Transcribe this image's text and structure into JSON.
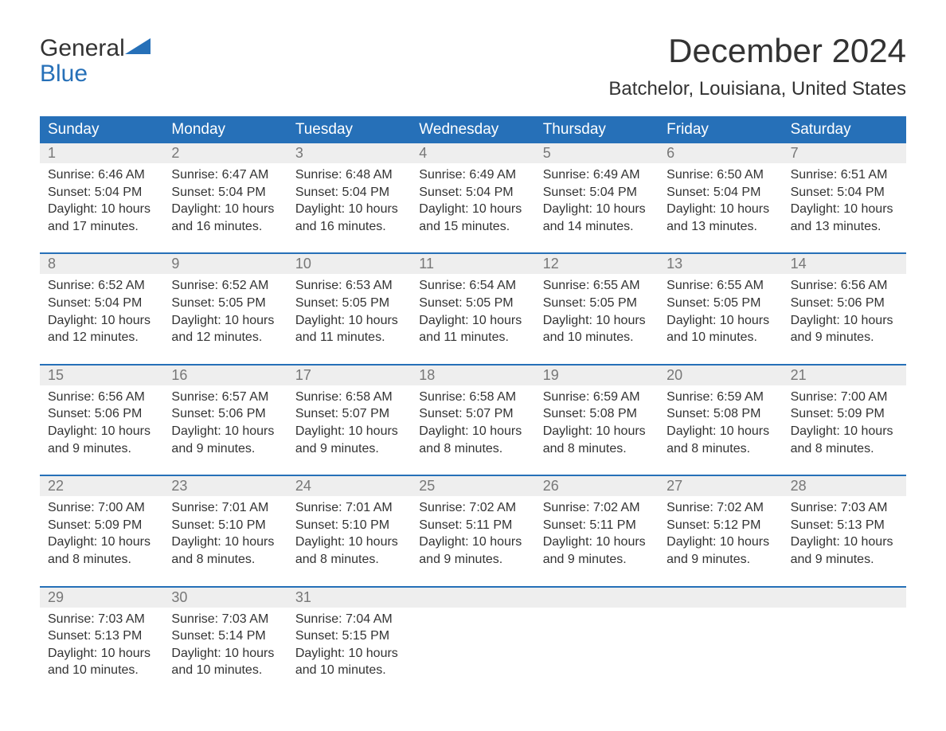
{
  "logo": {
    "word1": "General",
    "word2": "Blue"
  },
  "title": "December 2024",
  "location": "Batchelor, Louisiana, United States",
  "colors": {
    "header_bg": "#2670b8",
    "header_text": "#ffffff",
    "daynum_bg": "#eeeeee",
    "daynum_text": "#777777",
    "body_text": "#333333",
    "logo_blue": "#2670b8"
  },
  "day_headers": [
    "Sunday",
    "Monday",
    "Tuesday",
    "Wednesday",
    "Thursday",
    "Friday",
    "Saturday"
  ],
  "weeks": [
    [
      {
        "n": "1",
        "sr": "Sunrise: 6:46 AM",
        "ss": "Sunset: 5:04 PM",
        "d1": "Daylight: 10 hours",
        "d2": "and 17 minutes."
      },
      {
        "n": "2",
        "sr": "Sunrise: 6:47 AM",
        "ss": "Sunset: 5:04 PM",
        "d1": "Daylight: 10 hours",
        "d2": "and 16 minutes."
      },
      {
        "n": "3",
        "sr": "Sunrise: 6:48 AM",
        "ss": "Sunset: 5:04 PM",
        "d1": "Daylight: 10 hours",
        "d2": "and 16 minutes."
      },
      {
        "n": "4",
        "sr": "Sunrise: 6:49 AM",
        "ss": "Sunset: 5:04 PM",
        "d1": "Daylight: 10 hours",
        "d2": "and 15 minutes."
      },
      {
        "n": "5",
        "sr": "Sunrise: 6:49 AM",
        "ss": "Sunset: 5:04 PM",
        "d1": "Daylight: 10 hours",
        "d2": "and 14 minutes."
      },
      {
        "n": "6",
        "sr": "Sunrise: 6:50 AM",
        "ss": "Sunset: 5:04 PM",
        "d1": "Daylight: 10 hours",
        "d2": "and 13 minutes."
      },
      {
        "n": "7",
        "sr": "Sunrise: 6:51 AM",
        "ss": "Sunset: 5:04 PM",
        "d1": "Daylight: 10 hours",
        "d2": "and 13 minutes."
      }
    ],
    [
      {
        "n": "8",
        "sr": "Sunrise: 6:52 AM",
        "ss": "Sunset: 5:04 PM",
        "d1": "Daylight: 10 hours",
        "d2": "and 12 minutes."
      },
      {
        "n": "9",
        "sr": "Sunrise: 6:52 AM",
        "ss": "Sunset: 5:05 PM",
        "d1": "Daylight: 10 hours",
        "d2": "and 12 minutes."
      },
      {
        "n": "10",
        "sr": "Sunrise: 6:53 AM",
        "ss": "Sunset: 5:05 PM",
        "d1": "Daylight: 10 hours",
        "d2": "and 11 minutes."
      },
      {
        "n": "11",
        "sr": "Sunrise: 6:54 AM",
        "ss": "Sunset: 5:05 PM",
        "d1": "Daylight: 10 hours",
        "d2": "and 11 minutes."
      },
      {
        "n": "12",
        "sr": "Sunrise: 6:55 AM",
        "ss": "Sunset: 5:05 PM",
        "d1": "Daylight: 10 hours",
        "d2": "and 10 minutes."
      },
      {
        "n": "13",
        "sr": "Sunrise: 6:55 AM",
        "ss": "Sunset: 5:05 PM",
        "d1": "Daylight: 10 hours",
        "d2": "and 10 minutes."
      },
      {
        "n": "14",
        "sr": "Sunrise: 6:56 AM",
        "ss": "Sunset: 5:06 PM",
        "d1": "Daylight: 10 hours",
        "d2": "and 9 minutes."
      }
    ],
    [
      {
        "n": "15",
        "sr": "Sunrise: 6:56 AM",
        "ss": "Sunset: 5:06 PM",
        "d1": "Daylight: 10 hours",
        "d2": "and 9 minutes."
      },
      {
        "n": "16",
        "sr": "Sunrise: 6:57 AM",
        "ss": "Sunset: 5:06 PM",
        "d1": "Daylight: 10 hours",
        "d2": "and 9 minutes."
      },
      {
        "n": "17",
        "sr": "Sunrise: 6:58 AM",
        "ss": "Sunset: 5:07 PM",
        "d1": "Daylight: 10 hours",
        "d2": "and 9 minutes."
      },
      {
        "n": "18",
        "sr": "Sunrise: 6:58 AM",
        "ss": "Sunset: 5:07 PM",
        "d1": "Daylight: 10 hours",
        "d2": "and 8 minutes."
      },
      {
        "n": "19",
        "sr": "Sunrise: 6:59 AM",
        "ss": "Sunset: 5:08 PM",
        "d1": "Daylight: 10 hours",
        "d2": "and 8 minutes."
      },
      {
        "n": "20",
        "sr": "Sunrise: 6:59 AM",
        "ss": "Sunset: 5:08 PM",
        "d1": "Daylight: 10 hours",
        "d2": "and 8 minutes."
      },
      {
        "n": "21",
        "sr": "Sunrise: 7:00 AM",
        "ss": "Sunset: 5:09 PM",
        "d1": "Daylight: 10 hours",
        "d2": "and 8 minutes."
      }
    ],
    [
      {
        "n": "22",
        "sr": "Sunrise: 7:00 AM",
        "ss": "Sunset: 5:09 PM",
        "d1": "Daylight: 10 hours",
        "d2": "and 8 minutes."
      },
      {
        "n": "23",
        "sr": "Sunrise: 7:01 AM",
        "ss": "Sunset: 5:10 PM",
        "d1": "Daylight: 10 hours",
        "d2": "and 8 minutes."
      },
      {
        "n": "24",
        "sr": "Sunrise: 7:01 AM",
        "ss": "Sunset: 5:10 PM",
        "d1": "Daylight: 10 hours",
        "d2": "and 8 minutes."
      },
      {
        "n": "25",
        "sr": "Sunrise: 7:02 AM",
        "ss": "Sunset: 5:11 PM",
        "d1": "Daylight: 10 hours",
        "d2": "and 9 minutes."
      },
      {
        "n": "26",
        "sr": "Sunrise: 7:02 AM",
        "ss": "Sunset: 5:11 PM",
        "d1": "Daylight: 10 hours",
        "d2": "and 9 minutes."
      },
      {
        "n": "27",
        "sr": "Sunrise: 7:02 AM",
        "ss": "Sunset: 5:12 PM",
        "d1": "Daylight: 10 hours",
        "d2": "and 9 minutes."
      },
      {
        "n": "28",
        "sr": "Sunrise: 7:03 AM",
        "ss": "Sunset: 5:13 PM",
        "d1": "Daylight: 10 hours",
        "d2": "and 9 minutes."
      }
    ],
    [
      {
        "n": "29",
        "sr": "Sunrise: 7:03 AM",
        "ss": "Sunset: 5:13 PM",
        "d1": "Daylight: 10 hours",
        "d2": "and 10 minutes."
      },
      {
        "n": "30",
        "sr": "Sunrise: 7:03 AM",
        "ss": "Sunset: 5:14 PM",
        "d1": "Daylight: 10 hours",
        "d2": "and 10 minutes."
      },
      {
        "n": "31",
        "sr": "Sunrise: 7:04 AM",
        "ss": "Sunset: 5:15 PM",
        "d1": "Daylight: 10 hours",
        "d2": "and 10 minutes."
      },
      null,
      null,
      null,
      null
    ]
  ]
}
